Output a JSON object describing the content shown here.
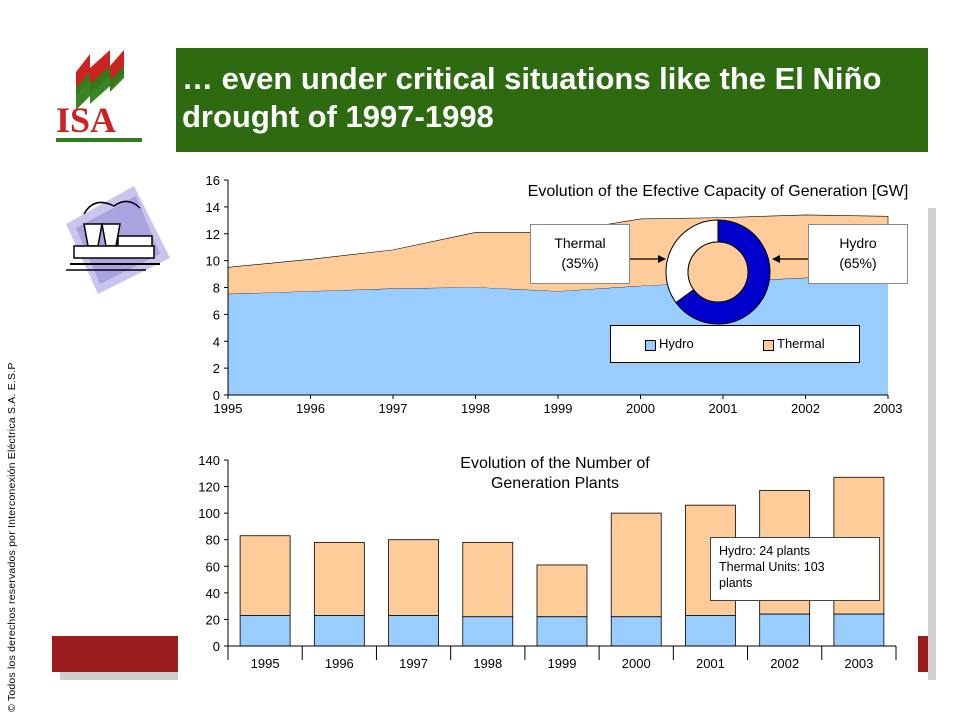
{
  "slide": {
    "title": "… even under critical situations like the El Niño drought of 1997-1998",
    "copyright": "© Todos los derechos reservados por Interconexión Eléctrica S.A. E.S.P",
    "logo_text": "ISA"
  },
  "colors": {
    "title_bg": "#2e6b10",
    "hydro": "#99ccff",
    "thermal": "#ffcc99",
    "logo_red": "#cc2222",
    "logo_green": "#2e7d1a",
    "side_bar_red": "#9b1c1c"
  },
  "icons": [
    "power-plant-clipart-icon",
    "isa-logo-icon"
  ],
  "chart_data": [
    {
      "type": "area",
      "title": "Evolution of the Efective Capacity of Generation [GW]",
      "x": [
        1995,
        1996,
        1997,
        1998,
        1999,
        2000,
        2001,
        2002,
        2003
      ],
      "xlabels": [
        "1995",
        "1996",
        "1997",
        "1998",
        "1999",
        "2000",
        "2001",
        "2002",
        "2003"
      ],
      "ylim": [
        0,
        16
      ],
      "yticks": [
        "0",
        "2",
        "4",
        "6",
        "8",
        "10",
        "12",
        "14",
        "16"
      ],
      "stacked": true,
      "series": [
        {
          "name": "Hydro",
          "values": [
            7.5,
            7.7,
            7.9,
            8.0,
            7.7,
            8.1,
            8.4,
            8.7,
            8.9
          ]
        },
        {
          "name": "Thermal",
          "values": [
            2.0,
            2.4,
            2.9,
            4.1,
            4.4,
            5.0,
            4.8,
            4.7,
            4.4
          ]
        }
      ],
      "legend": {
        "position": "bottom-right",
        "labels": [
          "Hydro",
          "Thermal"
        ]
      },
      "inset_pie": {
        "type": "pie",
        "labels": [
          "Hydro",
          "Thermal"
        ],
        "values": [
          65,
          35
        ]
      },
      "annotations": [
        {
          "id": "thermal",
          "line1": "Thermal",
          "line2": "(35%)"
        },
        {
          "id": "hydro",
          "line1": "Hydro",
          "line2": "(65%)"
        }
      ]
    },
    {
      "type": "bar",
      "title_line1": "Evolution of the Number of",
      "title_line2": "Generation Plants",
      "categories": [
        "1995",
        "1996",
        "1997",
        "1998",
        "1999",
        "2000",
        "2001",
        "2002",
        "2003"
      ],
      "ylim": [
        0,
        140
      ],
      "yticks": [
        "0",
        "20",
        "40",
        "60",
        "80",
        "100",
        "120",
        "140"
      ],
      "stacked": true,
      "series": [
        {
          "name": "Hydro",
          "values": [
            23,
            23,
            23,
            22,
            22,
            22,
            23,
            24,
            24
          ]
        },
        {
          "name": "Thermal",
          "values": [
            60,
            55,
            57,
            56,
            39,
            78,
            83,
            93,
            103
          ]
        }
      ],
      "annotation": {
        "line1": "Hydro:  24 plants",
        "line2": "Thermal Units:  103",
        "line3": "plants"
      }
    }
  ]
}
